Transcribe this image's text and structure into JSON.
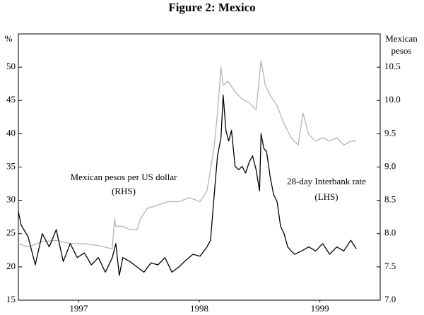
{
  "chart_data": {
    "type": "line",
    "title": "Figure 2: Mexico",
    "y_label": "%",
    "y2_label": [
      "Mexican",
      "pesos"
    ],
    "annotations": [
      "Mexican pesos per US dollar",
      "(RHS)",
      "28-day Interbank rate",
      "(LHS)"
    ],
    "xlim": [
      1997,
      2000
    ],
    "xticks": [
      {
        "value": 1997.5,
        "label": "1997"
      },
      {
        "value": 1998.5,
        "label": "1998"
      },
      {
        "value": 1999.5,
        "label": "1999"
      }
    ],
    "ylim": [
      15,
      55
    ],
    "yticks": [
      15,
      20,
      25,
      30,
      35,
      40,
      45,
      50
    ],
    "y2lim": [
      7,
      11
    ],
    "y2ticks": [
      {
        "value": 7,
        "label": "7.0"
      },
      7.5,
      {
        "value": 8,
        "label": "8.0"
      },
      8.5,
      {
        "value": 9,
        "label": "9.0"
      },
      9.5,
      {
        "value": 10,
        "label": "10.0"
      },
      10.5
    ],
    "series": [
      {
        "name": "28-day Interbank rate",
        "color": "#000000",
        "axis": "y",
        "x": [
          1997.0,
          1997.023,
          1997.081,
          1997.14,
          1997.198,
          1997.256,
          1997.314,
          1997.372,
          1997.43,
          1997.488,
          1997.547,
          1997.605,
          1997.663,
          1997.721,
          1997.779,
          1997.808,
          1997.837,
          1997.866,
          1997.924,
          1997.983,
          1998.041,
          1998.099,
          1998.157,
          1998.215,
          1998.273,
          1998.331,
          1998.39,
          1998.448,
          1998.506,
          1998.564,
          1998.593,
          1998.622,
          1998.651,
          1998.68,
          1998.698,
          1998.721,
          1998.744,
          1998.767,
          1998.797,
          1998.826,
          1998.855,
          1998.884,
          1998.913,
          1998.942,
          1998.971,
          1999.0,
          1999.012,
          1999.035,
          1999.058,
          1999.087,
          1999.116,
          1999.145,
          1999.174,
          1999.203,
          1999.233,
          1999.262,
          1999.291,
          1999.349,
          1999.407,
          1999.465,
          1999.523,
          1999.581,
          1999.64,
          1999.698,
          1999.756,
          1999.802
        ],
        "values": [
          28.3,
          26.3,
          24.5,
          20.3,
          25,
          23,
          25.6,
          20.8,
          23.5,
          21.4,
          22.1,
          20.3,
          21.4,
          19.2,
          21.4,
          23.5,
          18.7,
          21.4,
          20.8,
          20,
          19.2,
          20.6,
          20.3,
          21.4,
          19.2,
          20,
          21,
          21.9,
          21.6,
          23,
          24,
          30.4,
          36.7,
          39.4,
          45.8,
          40.5,
          38.9,
          40.5,
          35.1,
          34.6,
          35.1,
          34.1,
          35.7,
          36.7,
          34.6,
          31.4,
          40,
          37.8,
          37.3,
          33.6,
          30.9,
          29.8,
          26.1,
          25,
          23,
          22.4,
          21.9,
          22.4,
          23,
          22.4,
          23.5,
          21.9,
          23,
          22.4,
          24,
          22.7
        ]
      },
      {
        "name": "Mexican pesos per US dollar",
        "color": "#b4b4b4",
        "axis": "y2",
        "x": [
          1997.0,
          1997.081,
          1997.198,
          1997.314,
          1997.43,
          1997.547,
          1997.663,
          1997.779,
          1997.797,
          1997.808,
          1997.866,
          1997.924,
          1997.983,
          1998.012,
          1998.07,
          1998.157,
          1998.244,
          1998.331,
          1998.419,
          1998.506,
          1998.564,
          1998.622,
          1998.651,
          1998.68,
          1998.698,
          1998.738,
          1998.797,
          1998.855,
          1998.913,
          1998.971,
          1999.012,
          1999.047,
          1999.087,
          1999.145,
          1999.203,
          1999.262,
          1999.32,
          1999.36,
          1999.407,
          1999.465,
          1999.523,
          1999.581,
          1999.64,
          1999.698,
          1999.756,
          1999.802
        ],
        "values": [
          7.85,
          7.8,
          7.88,
          7.9,
          7.85,
          7.85,
          7.82,
          7.77,
          8.22,
          8.11,
          8.11,
          8.06,
          8.06,
          8.22,
          8.38,
          8.43,
          8.48,
          8.48,
          8.54,
          8.48,
          8.64,
          9.28,
          9.81,
          10.5,
          10.23,
          10.29,
          10.13,
          10.02,
          9.97,
          9.86,
          10.6,
          10.23,
          10.08,
          9.92,
          9.65,
          9.44,
          9.33,
          9.81,
          9.49,
          9.39,
          9.44,
          9.39,
          9.44,
          9.33,
          9.39,
          9.39
        ]
      }
    ]
  }
}
